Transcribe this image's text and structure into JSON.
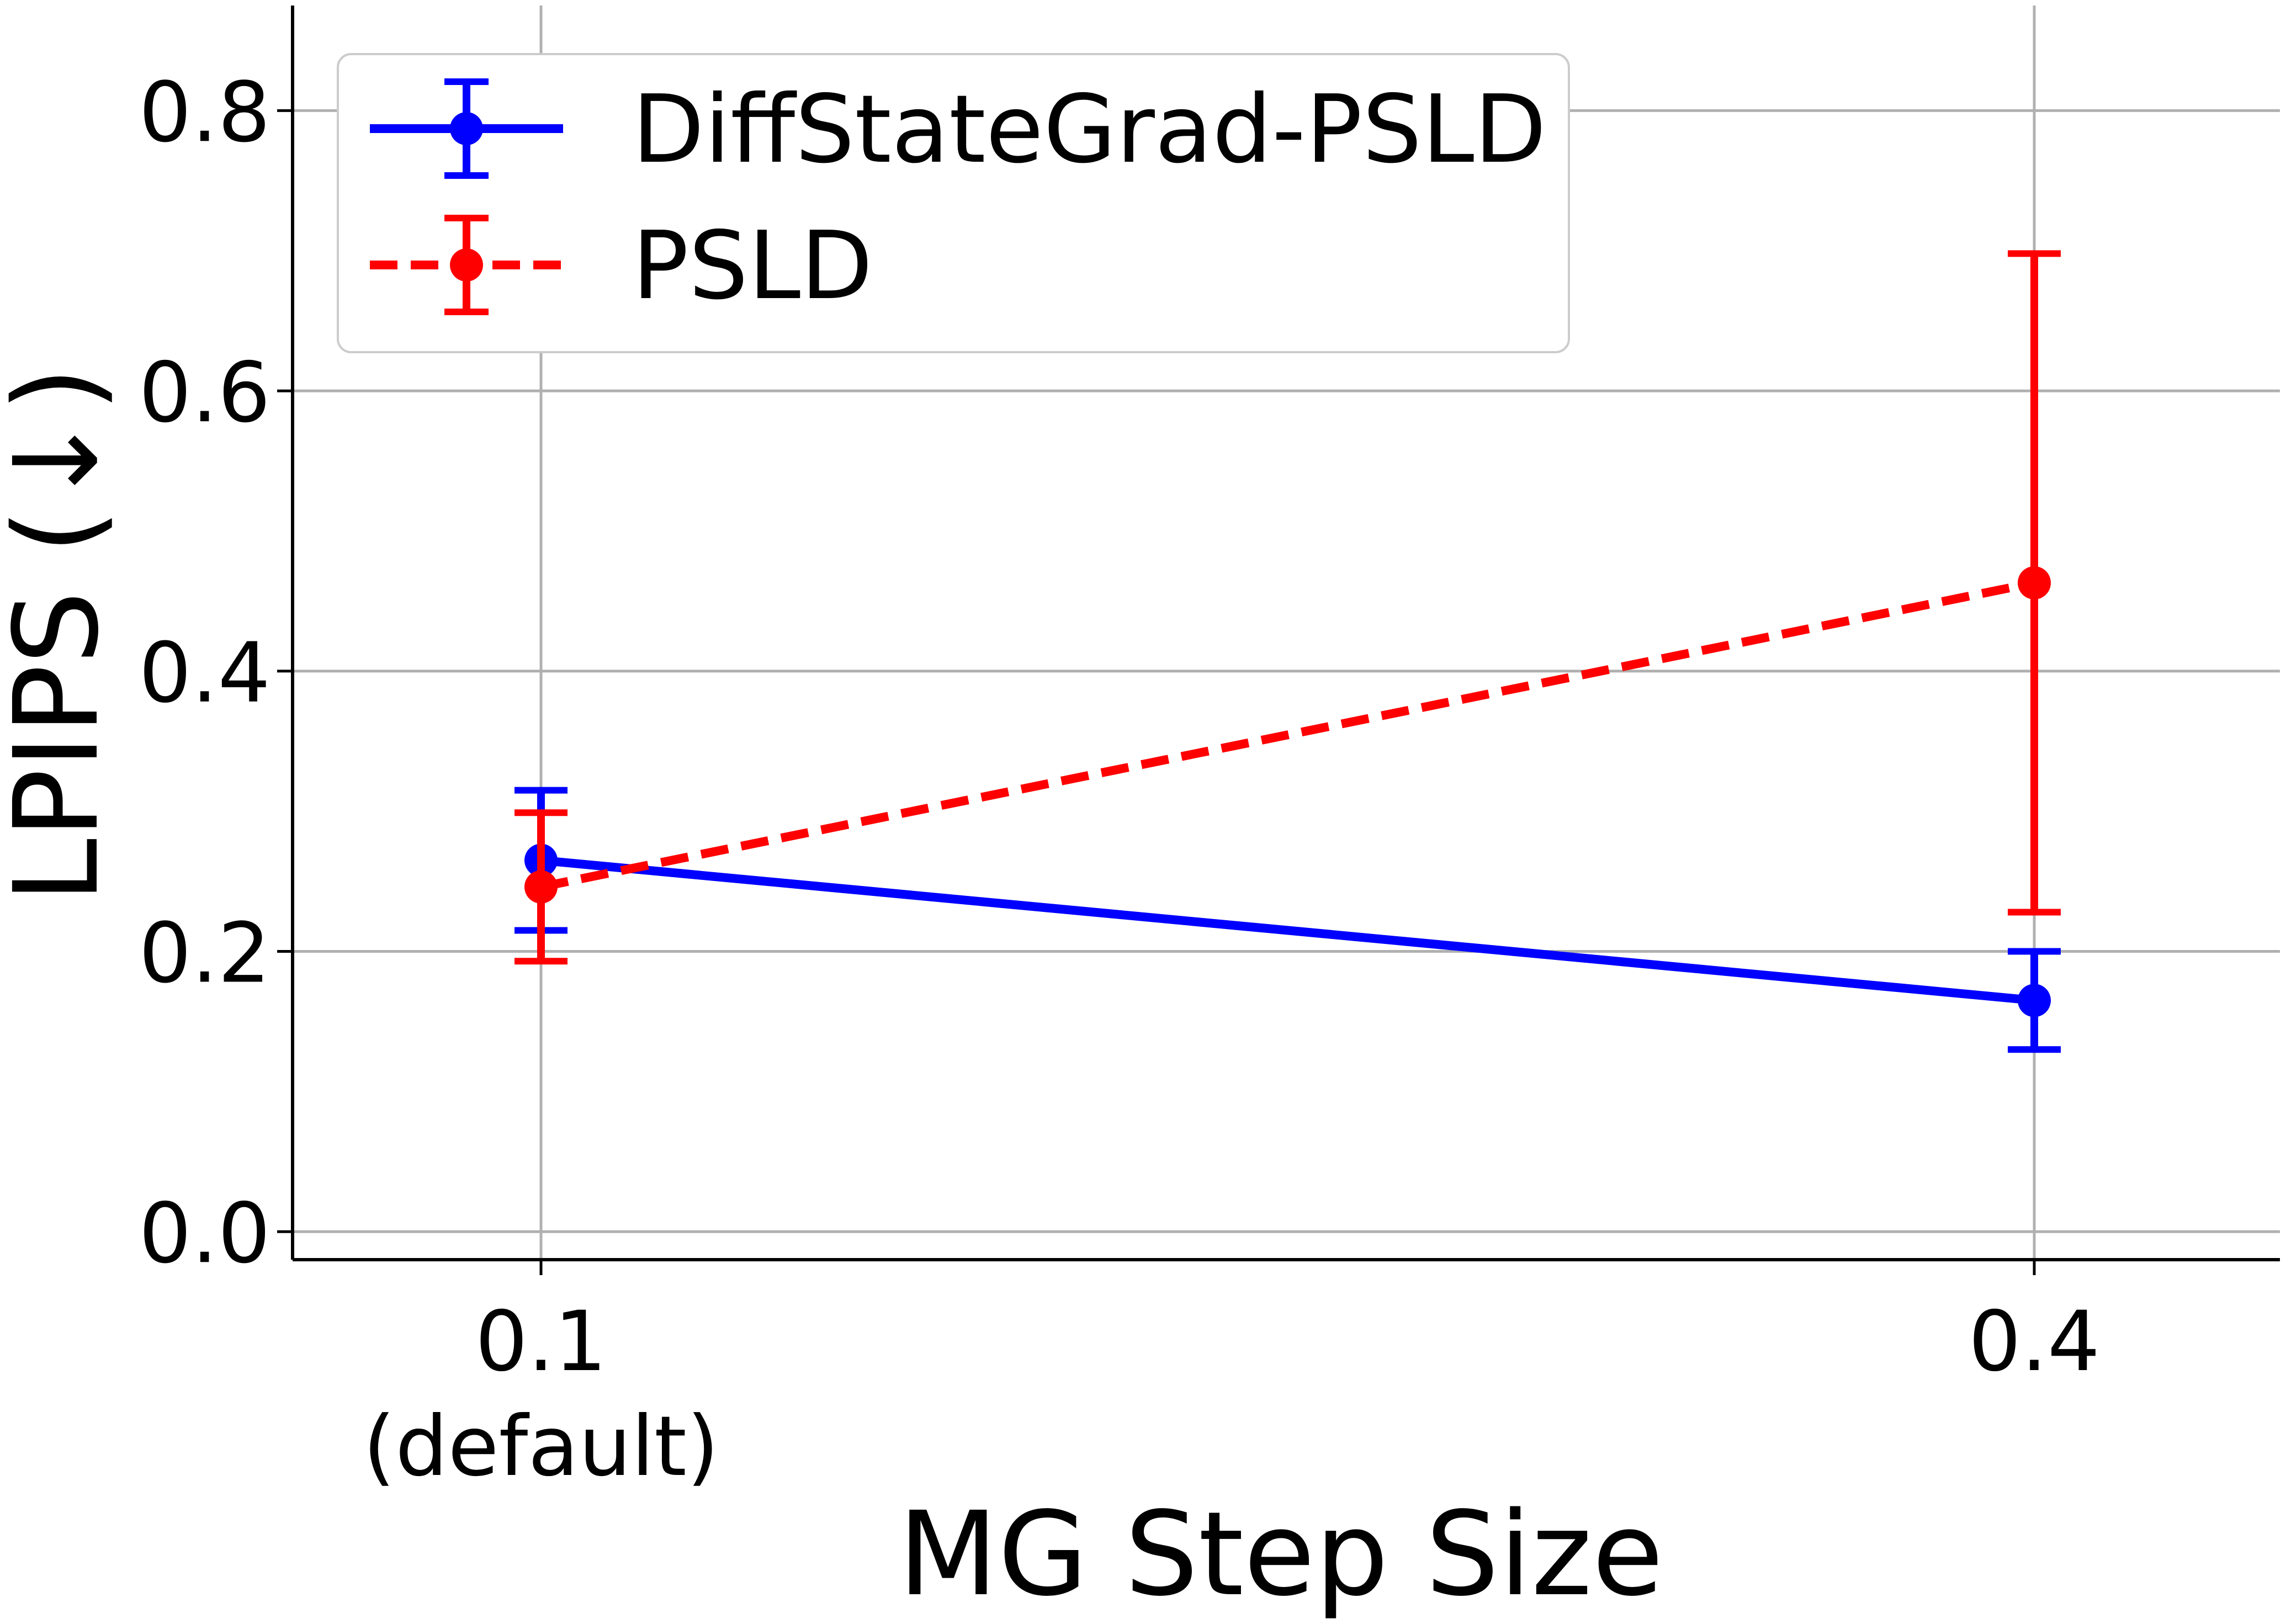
{
  "chart_data": {
    "type": "line",
    "title": "",
    "xlabel": "MG Step Size",
    "ylabel": "LPIPS (↓)",
    "ylim": [
      -0.02,
      0.875
    ],
    "y_ticks": [
      0.0,
      0.2,
      0.4,
      0.6,
      0.8
    ],
    "y_tick_labels": [
      "0.0",
      "0.2",
      "0.4",
      "0.6",
      "0.8"
    ],
    "x": [
      0.1,
      0.4
    ],
    "x_tick_labels": [
      [
        "0.1",
        "(default)"
      ],
      [
        "0.4"
      ]
    ],
    "grid": true,
    "legend_position": "top-left",
    "series": [
      {
        "name": "DiffStateGrad-PSLD",
        "color": "#0000ff",
        "line_style": "solid",
        "values": [
          0.265,
          0.165
        ],
        "errors": [
          0.05,
          0.035
        ]
      },
      {
        "name": "PSLD",
        "color": "#ff0000",
        "line_style": "dashed",
        "values": [
          0.246,
          0.463
        ],
        "errors": [
          0.053,
          0.235
        ]
      }
    ]
  }
}
